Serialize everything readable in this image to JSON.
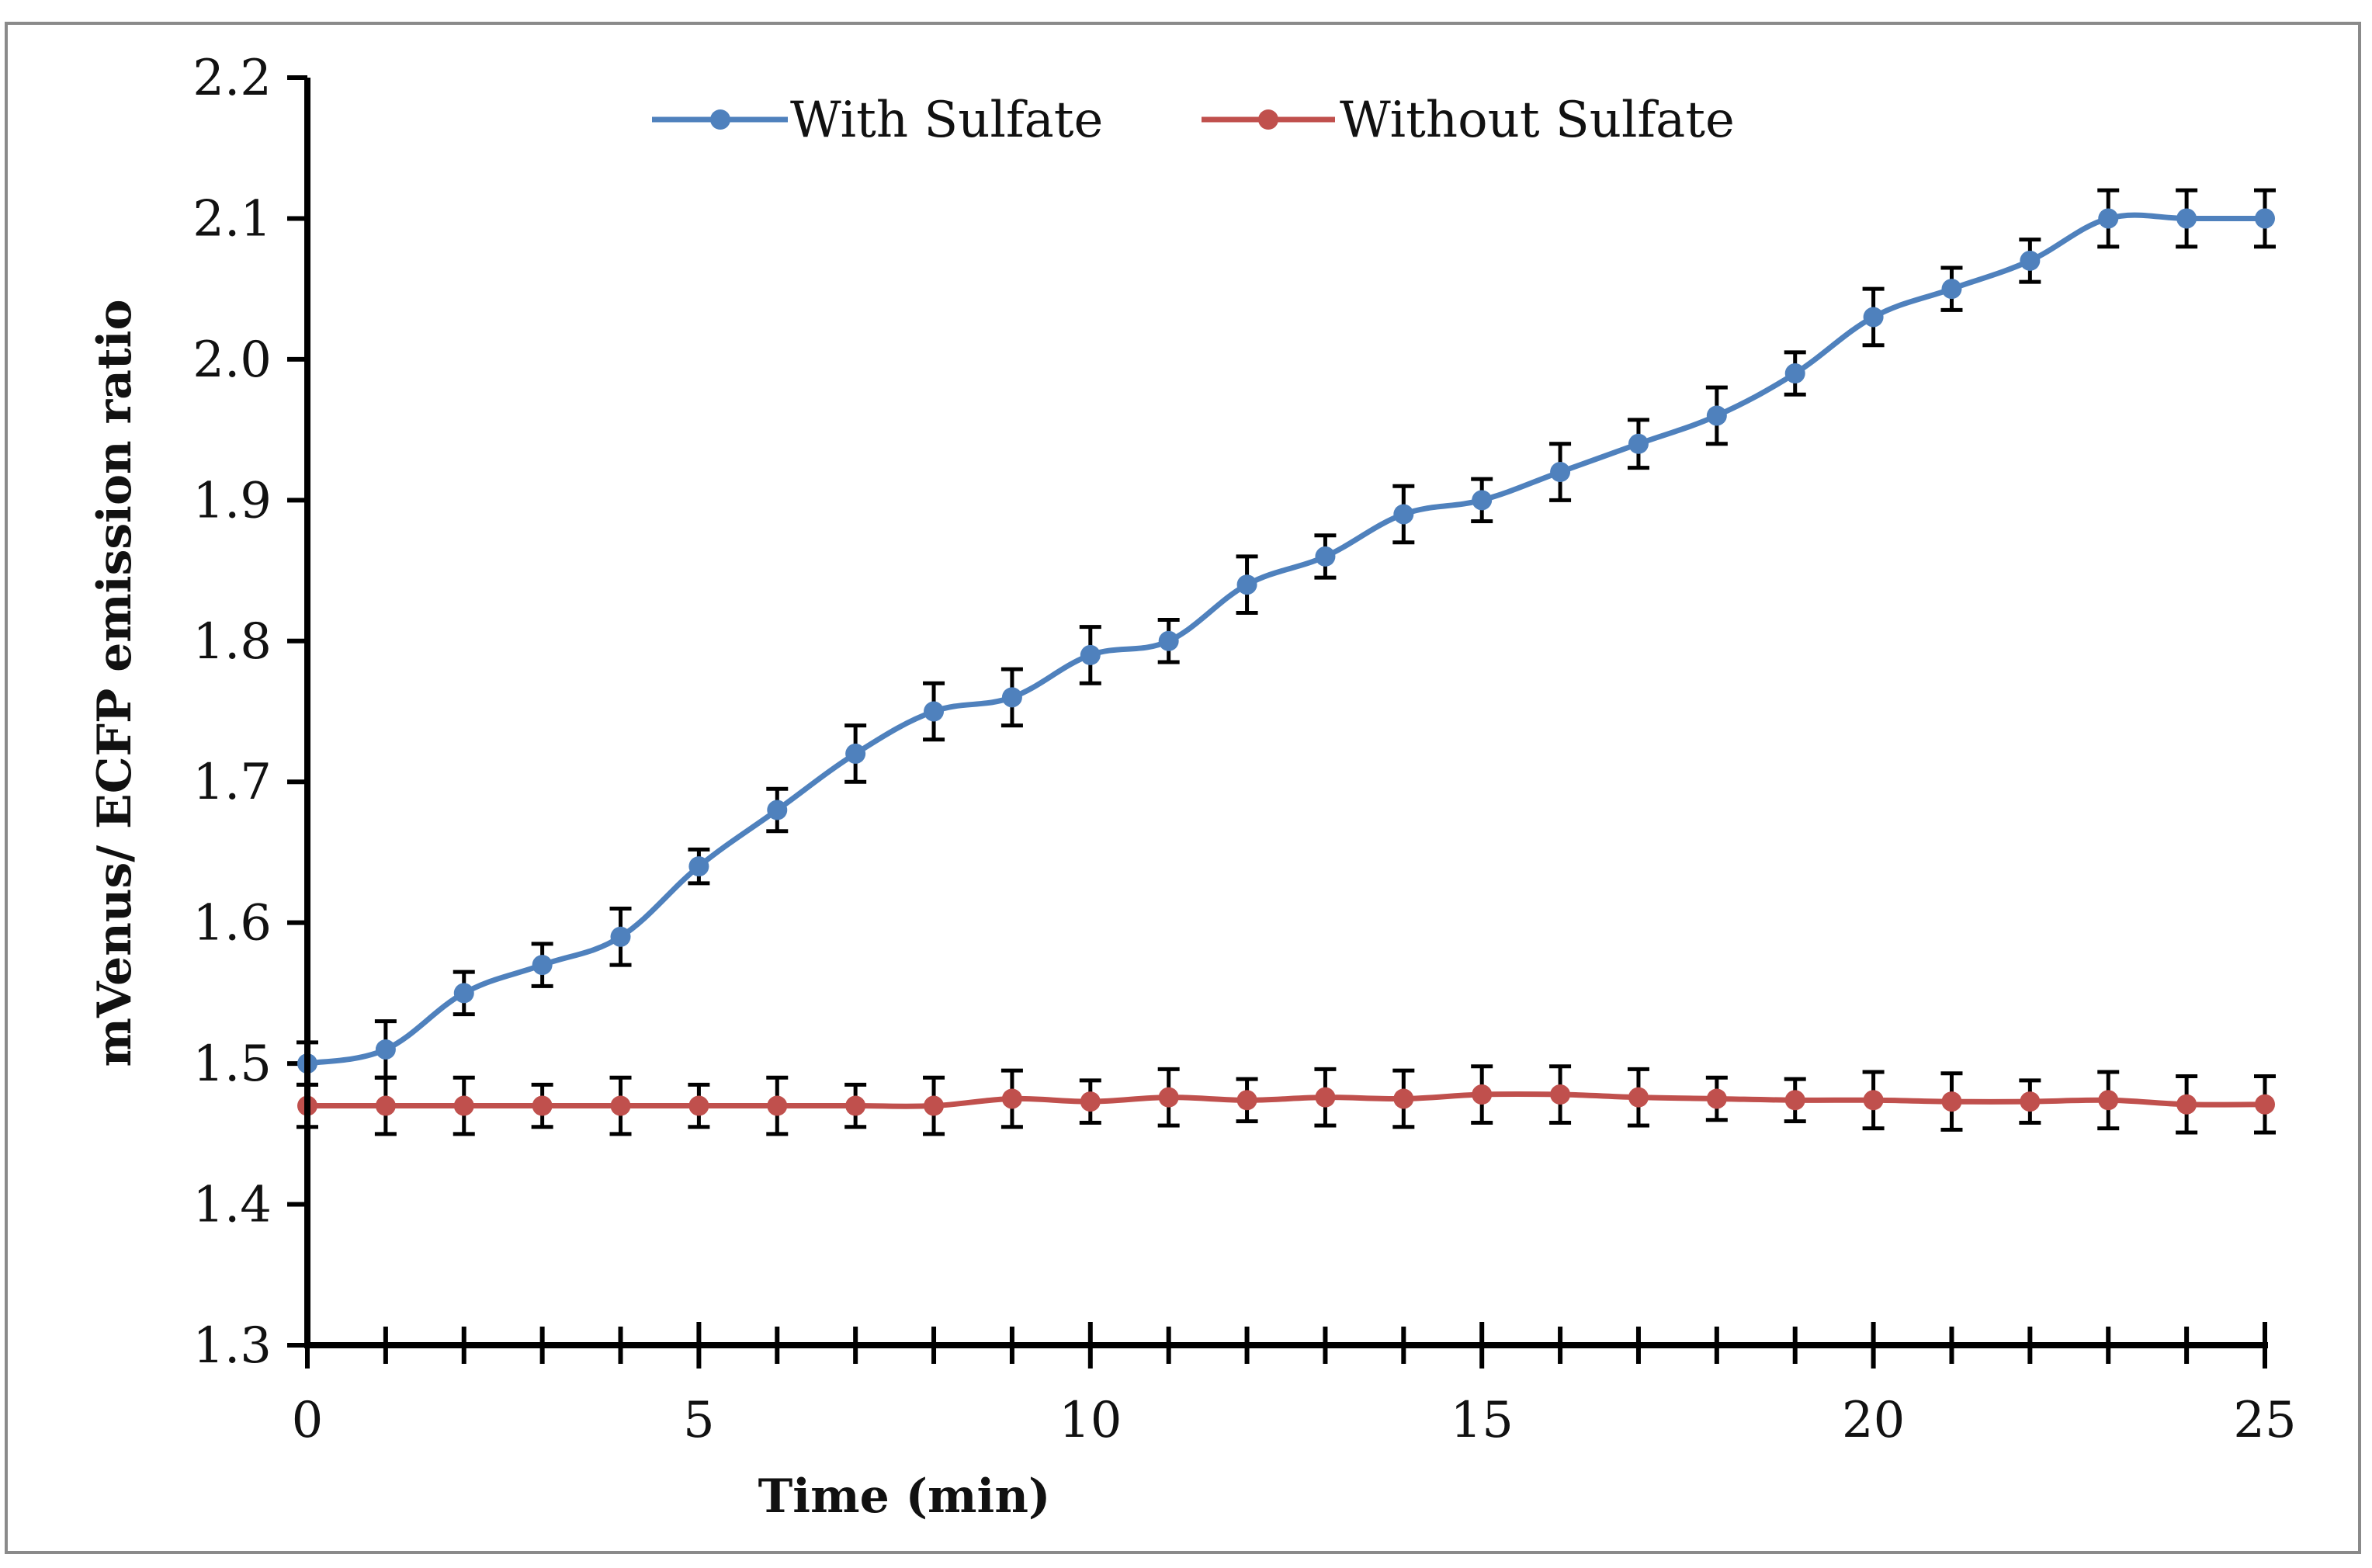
{
  "chart_data": {
    "type": "line",
    "title": "",
    "xlabel": "Time (min)",
    "ylabel": "mVenus/ ECFP  emission ratio",
    "xlim": [
      0,
      25
    ],
    "ylim": [
      1.3,
      2.2
    ],
    "x_ticks": [
      "0",
      "5",
      "10",
      "15",
      "20",
      "25"
    ],
    "y_ticks": [
      "1.3",
      "1.4",
      "1.5",
      "1.6",
      "1.7",
      "1.8",
      "1.9",
      "2.0",
      "2.1",
      "2.2"
    ],
    "grid": false,
    "legend_position": "top-center",
    "x": [
      0,
      1,
      2,
      3,
      4,
      5,
      6,
      7,
      8,
      9,
      10,
      11,
      12,
      13,
      14,
      15,
      16,
      17,
      18,
      19,
      20,
      21,
      22,
      23,
      24,
      25
    ],
    "series": [
      {
        "name": "With Sulfate",
        "color": "#4f81bd",
        "values": [
          1.5,
          1.51,
          1.55,
          1.57,
          1.59,
          1.64,
          1.68,
          1.72,
          1.75,
          1.76,
          1.79,
          1.8,
          1.84,
          1.86,
          1.89,
          1.9,
          1.92,
          1.94,
          1.96,
          1.99,
          2.03,
          2.05,
          2.07,
          2.1,
          2.1,
          2.1
        ],
        "errors": [
          0.015,
          0.02,
          0.015,
          0.015,
          0.02,
          0.012,
          0.015,
          0.02,
          0.02,
          0.02,
          0.02,
          0.015,
          0.02,
          0.015,
          0.02,
          0.015,
          0.02,
          0.017,
          0.02,
          0.015,
          0.02,
          0.015,
          0.015,
          0.02,
          0.02,
          0.02
        ]
      },
      {
        "name": "Without Sulfate",
        "color": "#c0504d",
        "values": [
          1.47,
          1.47,
          1.47,
          1.47,
          1.47,
          1.47,
          1.47,
          1.47,
          1.47,
          1.475,
          1.473,
          1.476,
          1.474,
          1.476,
          1.475,
          1.478,
          1.478,
          1.476,
          1.475,
          1.474,
          1.474,
          1.473,
          1.473,
          1.474,
          1.471,
          1.471
        ],
        "errors": [
          0.015,
          0.02,
          0.02,
          0.015,
          0.02,
          0.015,
          0.02,
          0.015,
          0.02,
          0.02,
          0.015,
          0.02,
          0.015,
          0.02,
          0.02,
          0.02,
          0.02,
          0.02,
          0.015,
          0.015,
          0.02,
          0.02,
          0.015,
          0.02,
          0.02,
          0.02
        ]
      }
    ]
  }
}
